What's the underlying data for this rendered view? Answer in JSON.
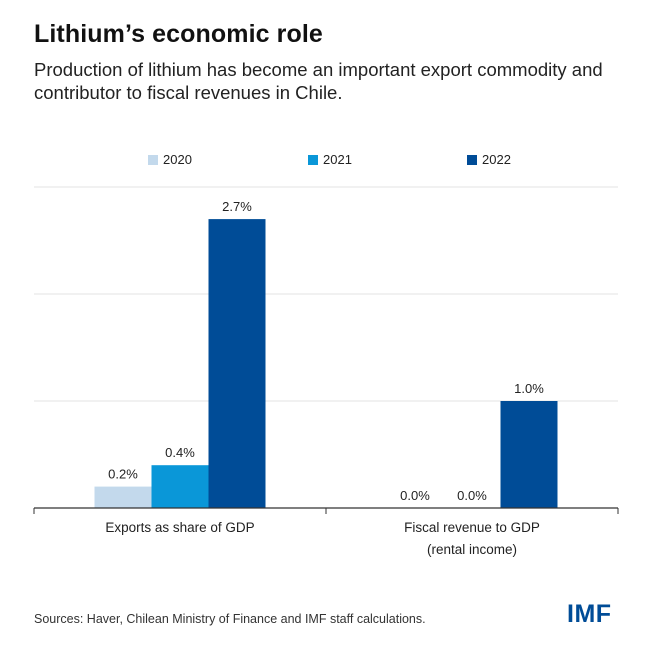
{
  "title": "Lithium’s economic role",
  "subtitle": "Production of lithium has become an important export commodity and contributor to fiscal revenues in Chile.",
  "source": "Sources: Haver, Chilean Ministry of Finance and IMF staff calculations.",
  "logo": "IMF",
  "colors": {
    "2020": "#c3d9ec",
    "2021": "#0a97d8",
    "2022": "#004c97",
    "grid": "#e3e3e3",
    "axis": "#333333"
  },
  "chart_data": {
    "type": "bar",
    "categories": [
      "Exports as share of GDP",
      "Fiscal revenue to GDP\n(rental income)"
    ],
    "series": [
      {
        "name": "2020",
        "values": [
          0.2,
          0.0
        ],
        "labels": [
          "0.2%",
          "0.0%"
        ]
      },
      {
        "name": "2021",
        "values": [
          0.4,
          0.0
        ],
        "labels": [
          "0.4%",
          "0.0%"
        ]
      },
      {
        "name": "2022",
        "values": [
          2.7,
          1.0
        ],
        "labels": [
          "2.7%",
          "1.0%"
        ]
      }
    ],
    "ylim": [
      0,
      3
    ],
    "grid": true,
    "legend": "top-center",
    "xlabel": "",
    "ylabel": ""
  }
}
